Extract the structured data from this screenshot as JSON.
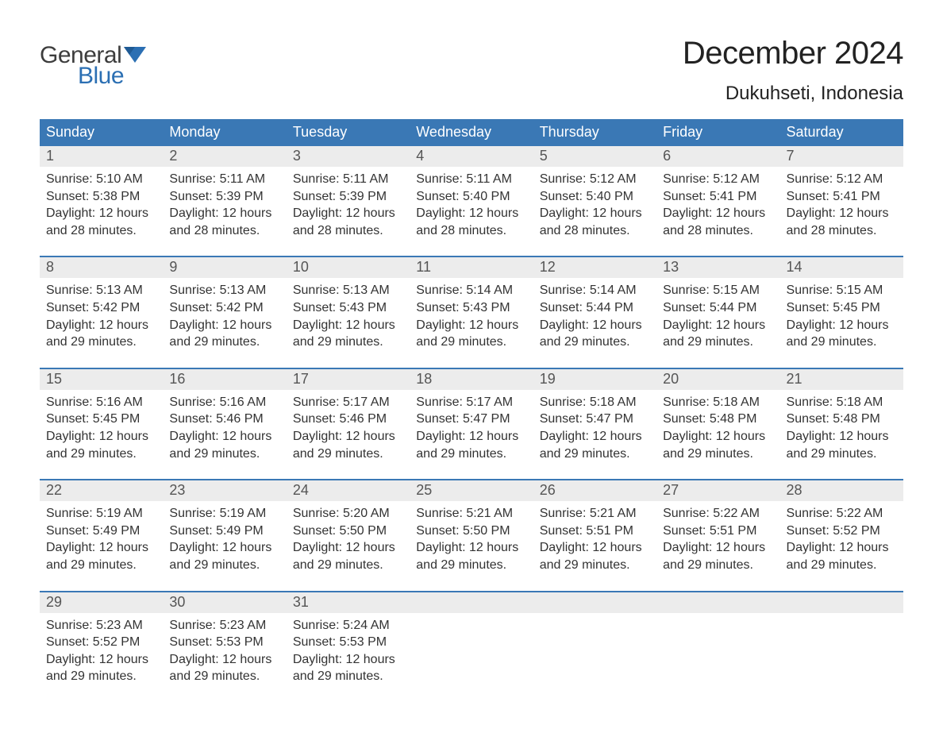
{
  "logo": {
    "text_general": "General",
    "text_blue": "Blue",
    "icon_color": "#2b6fb3",
    "general_color": "#3d3d3d"
  },
  "header": {
    "month_title": "December 2024",
    "location": "Dukuhseti, Indonesia"
  },
  "colors": {
    "header_bg": "#3a78b5",
    "header_text": "#ffffff",
    "daynum_bg": "#ececec",
    "daynum_text": "#555555",
    "body_text": "#333333",
    "week_border": "#3a78b5",
    "page_bg": "#ffffff"
  },
  "typography": {
    "month_title_fontsize": 40,
    "location_fontsize": 24,
    "day_header_fontsize": 18,
    "daynum_fontsize": 18,
    "cell_fontsize": 16,
    "font_family": "Arial, Helvetica, sans-serif"
  },
  "day_headers": [
    "Sunday",
    "Monday",
    "Tuesday",
    "Wednesday",
    "Thursday",
    "Friday",
    "Saturday"
  ],
  "weeks": [
    [
      {
        "num": "1",
        "sunrise": "Sunrise: 5:10 AM",
        "sunset": "Sunset: 5:38 PM",
        "d1": "Daylight: 12 hours",
        "d2": "and 28 minutes."
      },
      {
        "num": "2",
        "sunrise": "Sunrise: 5:11 AM",
        "sunset": "Sunset: 5:39 PM",
        "d1": "Daylight: 12 hours",
        "d2": "and 28 minutes."
      },
      {
        "num": "3",
        "sunrise": "Sunrise: 5:11 AM",
        "sunset": "Sunset: 5:39 PM",
        "d1": "Daylight: 12 hours",
        "d2": "and 28 minutes."
      },
      {
        "num": "4",
        "sunrise": "Sunrise: 5:11 AM",
        "sunset": "Sunset: 5:40 PM",
        "d1": "Daylight: 12 hours",
        "d2": "and 28 minutes."
      },
      {
        "num": "5",
        "sunrise": "Sunrise: 5:12 AM",
        "sunset": "Sunset: 5:40 PM",
        "d1": "Daylight: 12 hours",
        "d2": "and 28 minutes."
      },
      {
        "num": "6",
        "sunrise": "Sunrise: 5:12 AM",
        "sunset": "Sunset: 5:41 PM",
        "d1": "Daylight: 12 hours",
        "d2": "and 28 minutes."
      },
      {
        "num": "7",
        "sunrise": "Sunrise: 5:12 AM",
        "sunset": "Sunset: 5:41 PM",
        "d1": "Daylight: 12 hours",
        "d2": "and 28 minutes."
      }
    ],
    [
      {
        "num": "8",
        "sunrise": "Sunrise: 5:13 AM",
        "sunset": "Sunset: 5:42 PM",
        "d1": "Daylight: 12 hours",
        "d2": "and 29 minutes."
      },
      {
        "num": "9",
        "sunrise": "Sunrise: 5:13 AM",
        "sunset": "Sunset: 5:42 PM",
        "d1": "Daylight: 12 hours",
        "d2": "and 29 minutes."
      },
      {
        "num": "10",
        "sunrise": "Sunrise: 5:13 AM",
        "sunset": "Sunset: 5:43 PM",
        "d1": "Daylight: 12 hours",
        "d2": "and 29 minutes."
      },
      {
        "num": "11",
        "sunrise": "Sunrise: 5:14 AM",
        "sunset": "Sunset: 5:43 PM",
        "d1": "Daylight: 12 hours",
        "d2": "and 29 minutes."
      },
      {
        "num": "12",
        "sunrise": "Sunrise: 5:14 AM",
        "sunset": "Sunset: 5:44 PM",
        "d1": "Daylight: 12 hours",
        "d2": "and 29 minutes."
      },
      {
        "num": "13",
        "sunrise": "Sunrise: 5:15 AM",
        "sunset": "Sunset: 5:44 PM",
        "d1": "Daylight: 12 hours",
        "d2": "and 29 minutes."
      },
      {
        "num": "14",
        "sunrise": "Sunrise: 5:15 AM",
        "sunset": "Sunset: 5:45 PM",
        "d1": "Daylight: 12 hours",
        "d2": "and 29 minutes."
      }
    ],
    [
      {
        "num": "15",
        "sunrise": "Sunrise: 5:16 AM",
        "sunset": "Sunset: 5:45 PM",
        "d1": "Daylight: 12 hours",
        "d2": "and 29 minutes."
      },
      {
        "num": "16",
        "sunrise": "Sunrise: 5:16 AM",
        "sunset": "Sunset: 5:46 PM",
        "d1": "Daylight: 12 hours",
        "d2": "and 29 minutes."
      },
      {
        "num": "17",
        "sunrise": "Sunrise: 5:17 AM",
        "sunset": "Sunset: 5:46 PM",
        "d1": "Daylight: 12 hours",
        "d2": "and 29 minutes."
      },
      {
        "num": "18",
        "sunrise": "Sunrise: 5:17 AM",
        "sunset": "Sunset: 5:47 PM",
        "d1": "Daylight: 12 hours",
        "d2": "and 29 minutes."
      },
      {
        "num": "19",
        "sunrise": "Sunrise: 5:18 AM",
        "sunset": "Sunset: 5:47 PM",
        "d1": "Daylight: 12 hours",
        "d2": "and 29 minutes."
      },
      {
        "num": "20",
        "sunrise": "Sunrise: 5:18 AM",
        "sunset": "Sunset: 5:48 PM",
        "d1": "Daylight: 12 hours",
        "d2": "and 29 minutes."
      },
      {
        "num": "21",
        "sunrise": "Sunrise: 5:18 AM",
        "sunset": "Sunset: 5:48 PM",
        "d1": "Daylight: 12 hours",
        "d2": "and 29 minutes."
      }
    ],
    [
      {
        "num": "22",
        "sunrise": "Sunrise: 5:19 AM",
        "sunset": "Sunset: 5:49 PM",
        "d1": "Daylight: 12 hours",
        "d2": "and 29 minutes."
      },
      {
        "num": "23",
        "sunrise": "Sunrise: 5:19 AM",
        "sunset": "Sunset: 5:49 PM",
        "d1": "Daylight: 12 hours",
        "d2": "and 29 minutes."
      },
      {
        "num": "24",
        "sunrise": "Sunrise: 5:20 AM",
        "sunset": "Sunset: 5:50 PM",
        "d1": "Daylight: 12 hours",
        "d2": "and 29 minutes."
      },
      {
        "num": "25",
        "sunrise": "Sunrise: 5:21 AM",
        "sunset": "Sunset: 5:50 PM",
        "d1": "Daylight: 12 hours",
        "d2": "and 29 minutes."
      },
      {
        "num": "26",
        "sunrise": "Sunrise: 5:21 AM",
        "sunset": "Sunset: 5:51 PM",
        "d1": "Daylight: 12 hours",
        "d2": "and 29 minutes."
      },
      {
        "num": "27",
        "sunrise": "Sunrise: 5:22 AM",
        "sunset": "Sunset: 5:51 PM",
        "d1": "Daylight: 12 hours",
        "d2": "and 29 minutes."
      },
      {
        "num": "28",
        "sunrise": "Sunrise: 5:22 AM",
        "sunset": "Sunset: 5:52 PM",
        "d1": "Daylight: 12 hours",
        "d2": "and 29 minutes."
      }
    ],
    [
      {
        "num": "29",
        "sunrise": "Sunrise: 5:23 AM",
        "sunset": "Sunset: 5:52 PM",
        "d1": "Daylight: 12 hours",
        "d2": "and 29 minutes."
      },
      {
        "num": "30",
        "sunrise": "Sunrise: 5:23 AM",
        "sunset": "Sunset: 5:53 PM",
        "d1": "Daylight: 12 hours",
        "d2": "and 29 minutes."
      },
      {
        "num": "31",
        "sunrise": "Sunrise: 5:24 AM",
        "sunset": "Sunset: 5:53 PM",
        "d1": "Daylight: 12 hours",
        "d2": "and 29 minutes."
      },
      null,
      null,
      null,
      null
    ]
  ]
}
